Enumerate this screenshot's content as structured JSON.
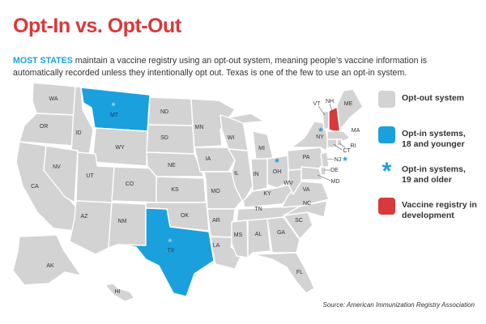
{
  "title": "Opt-In vs. Opt-Out",
  "intro": {
    "lead": "MOST STATES",
    "text": "maintain a vaccine registry using an opt-out system, meaning people’s vaccine information is automatically recorded unless they intentionally opt out. Texas is one of the few to use an opt-in system."
  },
  "colors": {
    "title": "#d8393a",
    "opt_out": "#d3d3d3",
    "opt_in_18_younger": "#1aa0dc",
    "vaccine_registry_dev": "#d8393a"
  },
  "legend": [
    {
      "label_line1": "Opt-out system",
      "label_line2": "",
      "symbol": "gray-square"
    },
    {
      "label_line1": "Opt-in systems,",
      "label_line2": "18 and younger",
      "symbol": "blue-square"
    },
    {
      "label_line1": "Opt-in systems,",
      "label_line2": "19 and older",
      "symbol": "asterisk-icon"
    },
    {
      "label_line1": "Vaccine registry in",
      "label_line2": "development",
      "symbol": "red-square"
    }
  ],
  "legend_asterisk": "*",
  "map_asterisk": "*",
  "states": {
    "WA": "WA",
    "OR": "OR",
    "CA": "CA",
    "ID": "ID",
    "NV": "NV",
    "MT": "MT",
    "WY": "WY",
    "UT": "UT",
    "AZ": "AZ",
    "CO": "CO",
    "NM": "NM",
    "ND": "ND",
    "SD": "SD",
    "NE": "NE",
    "KS": "KS",
    "OK": "OK",
    "TX": "TX",
    "MN": "MN",
    "IA": "IA",
    "MO": "MO",
    "AR": "AR",
    "LA": "LA",
    "WI": "WI",
    "IL": "IL",
    "MI": "MI",
    "IN": "IN",
    "OH": "OH",
    "KY": "KY",
    "TN": "TN",
    "MS": "MS",
    "AL": "AL",
    "GA": "GA",
    "FL": "FL",
    "SC": "SC",
    "NC": "NC",
    "VA": "VA",
    "WV": "WV",
    "PA": "PA",
    "NY": "NY",
    "VT": "VT",
    "NH": "NH",
    "ME": "ME",
    "MA": "MA",
    "RI": "RI",
    "CT": "CT",
    "NJ": "NJ",
    "DE": "DE",
    "MD": "MD",
    "AK": "AK",
    "HI": "HI"
  },
  "status": {
    "opt_in_18_younger": [
      "MT",
      "TX"
    ],
    "opt_in_19_older": [
      "MT",
      "TX",
      "OH",
      "NY",
      "NJ"
    ],
    "vaccine_registry_dev": [
      "NH"
    ]
  },
  "source": "Source: American Immunization Registry Association"
}
